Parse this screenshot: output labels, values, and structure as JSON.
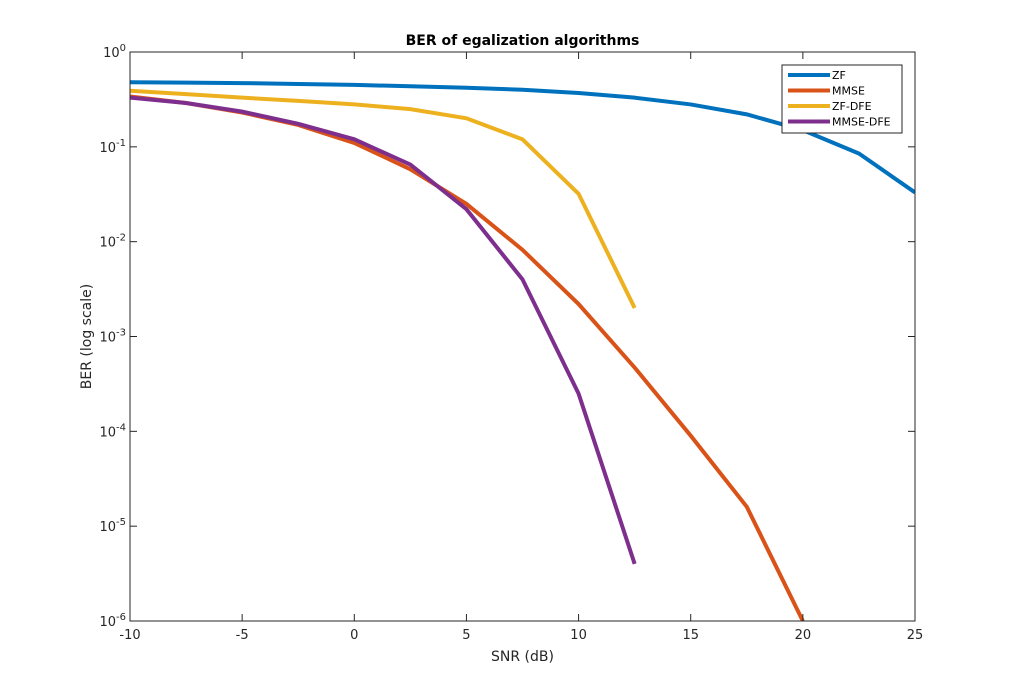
{
  "chart_data": {
    "type": "line",
    "title": "BER of egalization algorithms",
    "xlabel": "SNR (dB)",
    "ylabel": "BER (log scale)",
    "xlim": [
      -10,
      25
    ],
    "ylim": [
      1e-06,
      1
    ],
    "yscale": "log",
    "grid": false,
    "legend_position": "top-right",
    "x_ticks": [
      -10,
      -5,
      0,
      5,
      10,
      15,
      20,
      25
    ],
    "x_tick_labels": [
      "-10",
      "-5",
      "0",
      "5",
      "10",
      "15",
      "20",
      "25"
    ],
    "y_ticks": [
      1e-06,
      1e-05,
      0.0001,
      0.001,
      0.01,
      0.1,
      1
    ],
    "y_tick_labels": [
      {
        "base": "10",
        "exp": "-6"
      },
      {
        "base": "10",
        "exp": "-5"
      },
      {
        "base": "10",
        "exp": "-4"
      },
      {
        "base": "10",
        "exp": "-3"
      },
      {
        "base": "10",
        "exp": "-2"
      },
      {
        "base": "10",
        "exp": "-1"
      },
      {
        "base": "10",
        "exp": "0"
      }
    ],
    "series": [
      {
        "name": "ZF",
        "color": "#0072BD",
        "x": [
          -10,
          -7.5,
          -5,
          -2.5,
          0,
          2.5,
          5,
          7.5,
          10,
          12.5,
          15,
          17.5,
          20,
          22.5,
          25
        ],
        "y": [
          0.48,
          0.475,
          0.47,
          0.46,
          0.45,
          0.435,
          0.42,
          0.4,
          0.37,
          0.33,
          0.28,
          0.22,
          0.15,
          0.085,
          0.033
        ]
      },
      {
        "name": "MMSE",
        "color": "#D95319",
        "x": [
          -10,
          -7.5,
          -5,
          -2.5,
          0,
          2.5,
          5,
          7.5,
          10,
          12.5,
          15,
          17.5,
          20
        ],
        "y": [
          0.34,
          0.29,
          0.23,
          0.17,
          0.11,
          0.058,
          0.025,
          0.0082,
          0.0022,
          0.00047,
          9e-05,
          1.6e-05,
          1e-06
        ]
      },
      {
        "name": "ZF-DFE",
        "color": "#EDB120",
        "x": [
          -10,
          -7.5,
          -5,
          -2.5,
          0,
          2.5,
          5,
          7.5,
          10,
          12.5
        ],
        "y": [
          0.39,
          0.36,
          0.33,
          0.305,
          0.28,
          0.25,
          0.2,
          0.12,
          0.032,
          0.002
        ]
      },
      {
        "name": "MMSE-DFE",
        "color": "#7E2F8E",
        "x": [
          -10,
          -7.5,
          -5,
          -2.5,
          0,
          2.5,
          5,
          7.5,
          10,
          12.5
        ],
        "y": [
          0.33,
          0.29,
          0.235,
          0.175,
          0.12,
          0.065,
          0.022,
          0.004,
          0.00025,
          4e-06
        ]
      }
    ]
  }
}
